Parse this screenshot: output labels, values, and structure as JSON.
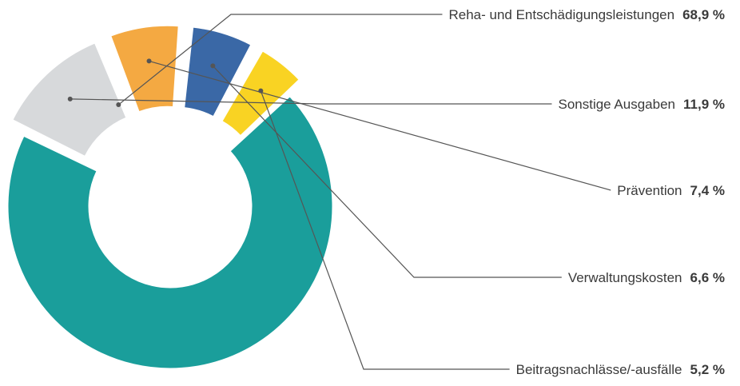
{
  "chart_data": {
    "type": "pie",
    "donut": true,
    "exploded": true,
    "title": "",
    "categories": [
      "Reha- und Entschädigungsleistungen",
      "Sonstige Ausgaben",
      "Prävention",
      "Verwaltungskosten",
      "Beitragsnachlässe/-ausfälle"
    ],
    "values": [
      68.9,
      11.9,
      7.4,
      6.6,
      5.2
    ],
    "value_labels": [
      "68,9 %",
      "11,9 %",
      "7,4 %",
      "6,6 %",
      "5,2 %"
    ],
    "colors": [
      "#1a9e9b",
      "#d7d9db",
      "#f4a942",
      "#3a68a6",
      "#f9d323"
    ],
    "legend": "labels-right-with-leader-lines"
  }
}
